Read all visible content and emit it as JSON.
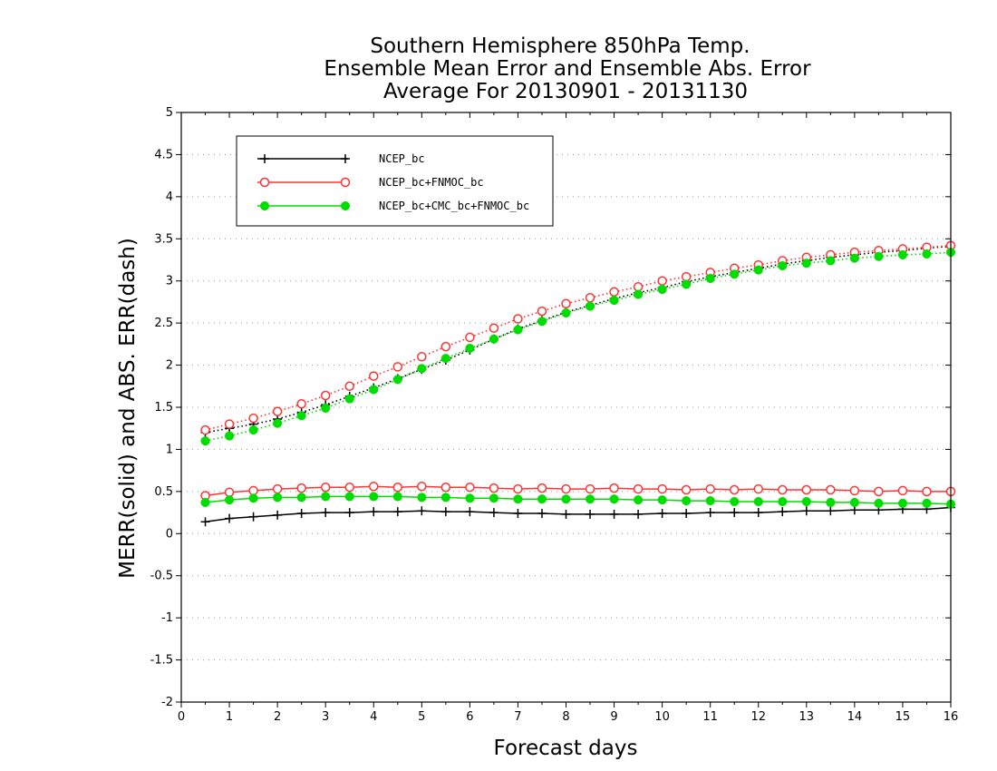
{
  "chart_data": {
    "type": "line",
    "title": [
      "Southern Hemisphere 850hPa Temp.",
      "Ensemble Mean Error and Ensemble Abs. Error",
      "Average For 20130901 - 20131130"
    ],
    "xlabel": "Forecast days",
    "ylabel": "MERR(solid) and ABS. ERR(dash)",
    "xlim": [
      0,
      16
    ],
    "ylim": [
      -2,
      5
    ],
    "xticks": [
      "0",
      "1",
      "2",
      "3",
      "4",
      "5",
      "6",
      "7",
      "8",
      "9",
      "10",
      "11",
      "12",
      "13",
      "14",
      "15",
      "16"
    ],
    "yticks": [
      "5",
      "4.5",
      "4",
      "3.5",
      "3",
      "2.5",
      "2",
      "1.5",
      "1",
      "0.5",
      "0",
      "-0.5",
      "-1",
      "-1.5",
      "-2"
    ],
    "grid": "horizontal-dotted",
    "legend_position": "top-left",
    "x": [
      0.5,
      1,
      1.5,
      2,
      2.5,
      3,
      3.5,
      4,
      4.5,
      5,
      5.5,
      6,
      6.5,
      7,
      7.5,
      8,
      8.5,
      9,
      9.5,
      10,
      10.5,
      11,
      11.5,
      12,
      12.5,
      13,
      13.5,
      14,
      14.5,
      15,
      15.5,
      16
    ],
    "series": [
      {
        "name": "NCEP_bc",
        "color": "#000000",
        "marker": "plus",
        "mean_error": [
          0.14,
          0.18,
          0.2,
          0.22,
          0.24,
          0.25,
          0.25,
          0.26,
          0.26,
          0.27,
          0.26,
          0.26,
          0.25,
          0.24,
          0.24,
          0.23,
          0.23,
          0.23,
          0.23,
          0.24,
          0.24,
          0.25,
          0.25,
          0.25,
          0.26,
          0.27,
          0.27,
          0.28,
          0.28,
          0.29,
          0.29,
          0.31
        ],
        "abs_error": [
          1.2,
          1.25,
          1.3,
          1.36,
          1.44,
          1.53,
          1.63,
          1.73,
          1.84,
          1.95,
          2.06,
          2.18,
          2.31,
          2.43,
          2.53,
          2.63,
          2.71,
          2.79,
          2.86,
          2.92,
          2.99,
          3.05,
          3.1,
          3.15,
          3.2,
          3.24,
          3.28,
          3.31,
          3.34,
          3.36,
          3.39,
          3.41
        ]
      },
      {
        "name": "NCEP_bc+FNMOC_bc",
        "color": "#ff3333",
        "marker": "open-circle",
        "mean_error": [
          0.45,
          0.49,
          0.51,
          0.53,
          0.54,
          0.55,
          0.55,
          0.56,
          0.55,
          0.56,
          0.55,
          0.55,
          0.54,
          0.53,
          0.54,
          0.53,
          0.53,
          0.54,
          0.53,
          0.53,
          0.52,
          0.53,
          0.52,
          0.53,
          0.52,
          0.52,
          0.52,
          0.51,
          0.5,
          0.51,
          0.5,
          0.5
        ],
        "abs_error": [
          1.23,
          1.3,
          1.37,
          1.45,
          1.54,
          1.64,
          1.75,
          1.87,
          1.98,
          2.1,
          2.22,
          2.33,
          2.44,
          2.55,
          2.64,
          2.73,
          2.8,
          2.87,
          2.93,
          3,
          3.05,
          3.1,
          3.15,
          3.19,
          3.24,
          3.28,
          3.31,
          3.34,
          3.36,
          3.38,
          3.4,
          3.42
        ]
      },
      {
        "name": "NCEP_bc+CMC_bc+FNMOC_bc",
        "color": "#00dd00",
        "marker": "filled-circle",
        "mean_error": [
          0.37,
          0.4,
          0.42,
          0.43,
          0.43,
          0.44,
          0.44,
          0.44,
          0.44,
          0.43,
          0.43,
          0.42,
          0.42,
          0.41,
          0.41,
          0.41,
          0.41,
          0.41,
          0.4,
          0.4,
          0.39,
          0.39,
          0.38,
          0.38,
          0.38,
          0.38,
          0.37,
          0.37,
          0.36,
          0.36,
          0.36,
          0.35
        ],
        "abs_error": [
          1.1,
          1.16,
          1.23,
          1.31,
          1.4,
          1.49,
          1.6,
          1.71,
          1.83,
          1.96,
          2.08,
          2.2,
          2.31,
          2.42,
          2.52,
          2.62,
          2.7,
          2.77,
          2.84,
          2.9,
          2.96,
          3.03,
          3.08,
          3.13,
          3.18,
          3.21,
          3.24,
          3.27,
          3.29,
          3.31,
          3.32,
          3.34
        ]
      }
    ]
  }
}
